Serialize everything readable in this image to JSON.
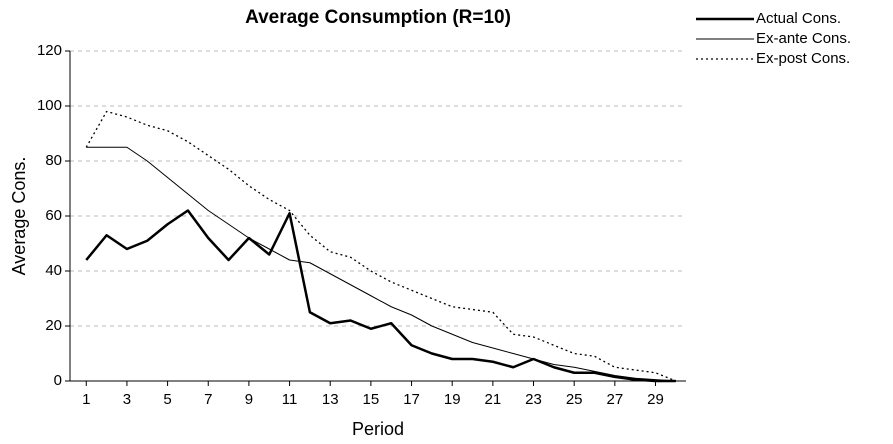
{
  "chart_data": {
    "type": "line",
    "title": "Average Consumption (R=10)",
    "x_label": "Period",
    "y_label": "Average Cons.",
    "x": [
      1,
      2,
      3,
      4,
      5,
      6,
      7,
      8,
      9,
      10,
      11,
      12,
      13,
      14,
      15,
      16,
      17,
      18,
      19,
      20,
      21,
      22,
      23,
      24,
      25,
      26,
      27,
      28,
      29,
      30
    ],
    "xlim": [
      0.2,
      30.5
    ],
    "xticks": [
      1,
      3,
      5,
      7,
      9,
      11,
      13,
      15,
      17,
      19,
      21,
      23,
      25,
      27,
      29
    ],
    "ylim": [
      0,
      120
    ],
    "yticks": [
      0,
      20,
      40,
      60,
      80,
      100,
      120
    ],
    "grid": true,
    "legend": "top-right",
    "series": [
      {
        "name": "Actual Cons.",
        "color": "#000000",
        "width": 2.5,
        "style": "solid",
        "values": [
          44,
          53,
          48,
          51,
          57,
          62,
          52,
          44,
          52,
          46,
          61,
          25,
          21,
          22,
          19,
          21,
          13,
          10,
          8,
          8,
          7,
          5,
          8,
          5,
          3,
          3,
          1.5,
          0.5,
          0,
          0
        ]
      },
      {
        "name": "Ex-ante Cons.",
        "color": "#000000",
        "width": 1,
        "style": "solid",
        "values": [
          85,
          85,
          85,
          80,
          74,
          68,
          62,
          57,
          52,
          48,
          44,
          43,
          39,
          35,
          31,
          27,
          24,
          20,
          17,
          14,
          12,
          10,
          8,
          6,
          5,
          3.5,
          2,
          1,
          0.5,
          0
        ]
      },
      {
        "name": "Ex-post Cons.",
        "color": "#000000",
        "width": 1.3,
        "style": "dotted",
        "values": [
          85,
          98,
          96,
          93,
          91,
          87,
          82,
          77,
          71,
          66,
          62,
          53,
          47,
          45,
          40,
          36,
          33,
          30,
          27,
          26,
          25,
          17,
          16,
          13,
          10,
          9,
          5,
          4,
          3,
          0
        ]
      }
    ]
  }
}
